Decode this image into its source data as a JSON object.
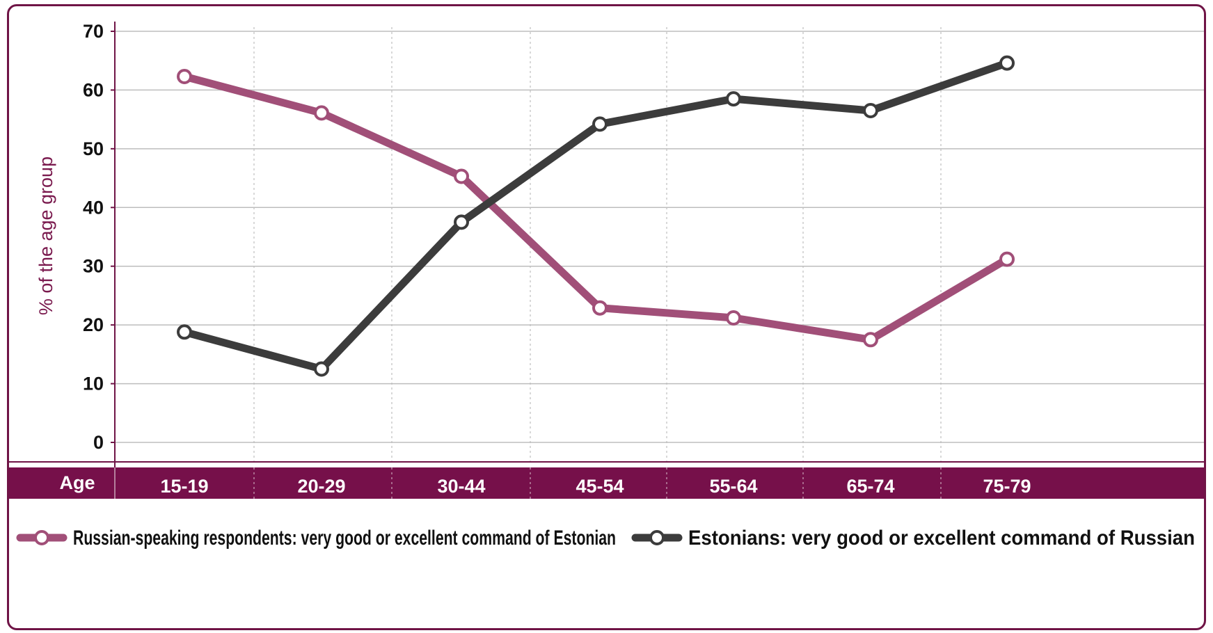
{
  "chart_data": {
    "type": "line",
    "categories": [
      "15-19",
      "20-29",
      "30-44",
      "45-54",
      "55-64",
      "65-74",
      "75-79"
    ],
    "x_axis_title": "Age",
    "ylabel": "% of the age group",
    "ylim": [
      0,
      70
    ],
    "yticks": [
      "0",
      "10",
      "20",
      "30",
      "40",
      "50",
      "60",
      "70"
    ],
    "grid": true,
    "legend_position": "bottom",
    "series": [
      {
        "name": "Russian-speaking respondents: very good or excellent command of Estonian",
        "color": "#a14f78",
        "values": [
          62.3,
          56.1,
          45.3,
          22.9,
          21.2,
          17.5,
          31.2
        ]
      },
      {
        "name": "Estonians: very good or excellent command of Russian",
        "color": "#3c3c3c",
        "values": [
          18.8,
          12.5,
          37.5,
          54.2,
          58.5,
          56.5,
          64.6
        ]
      }
    ],
    "colors": {
      "frame": "#6f1446",
      "axis_band": "#76104a",
      "grid": "#bdbdbd"
    }
  }
}
